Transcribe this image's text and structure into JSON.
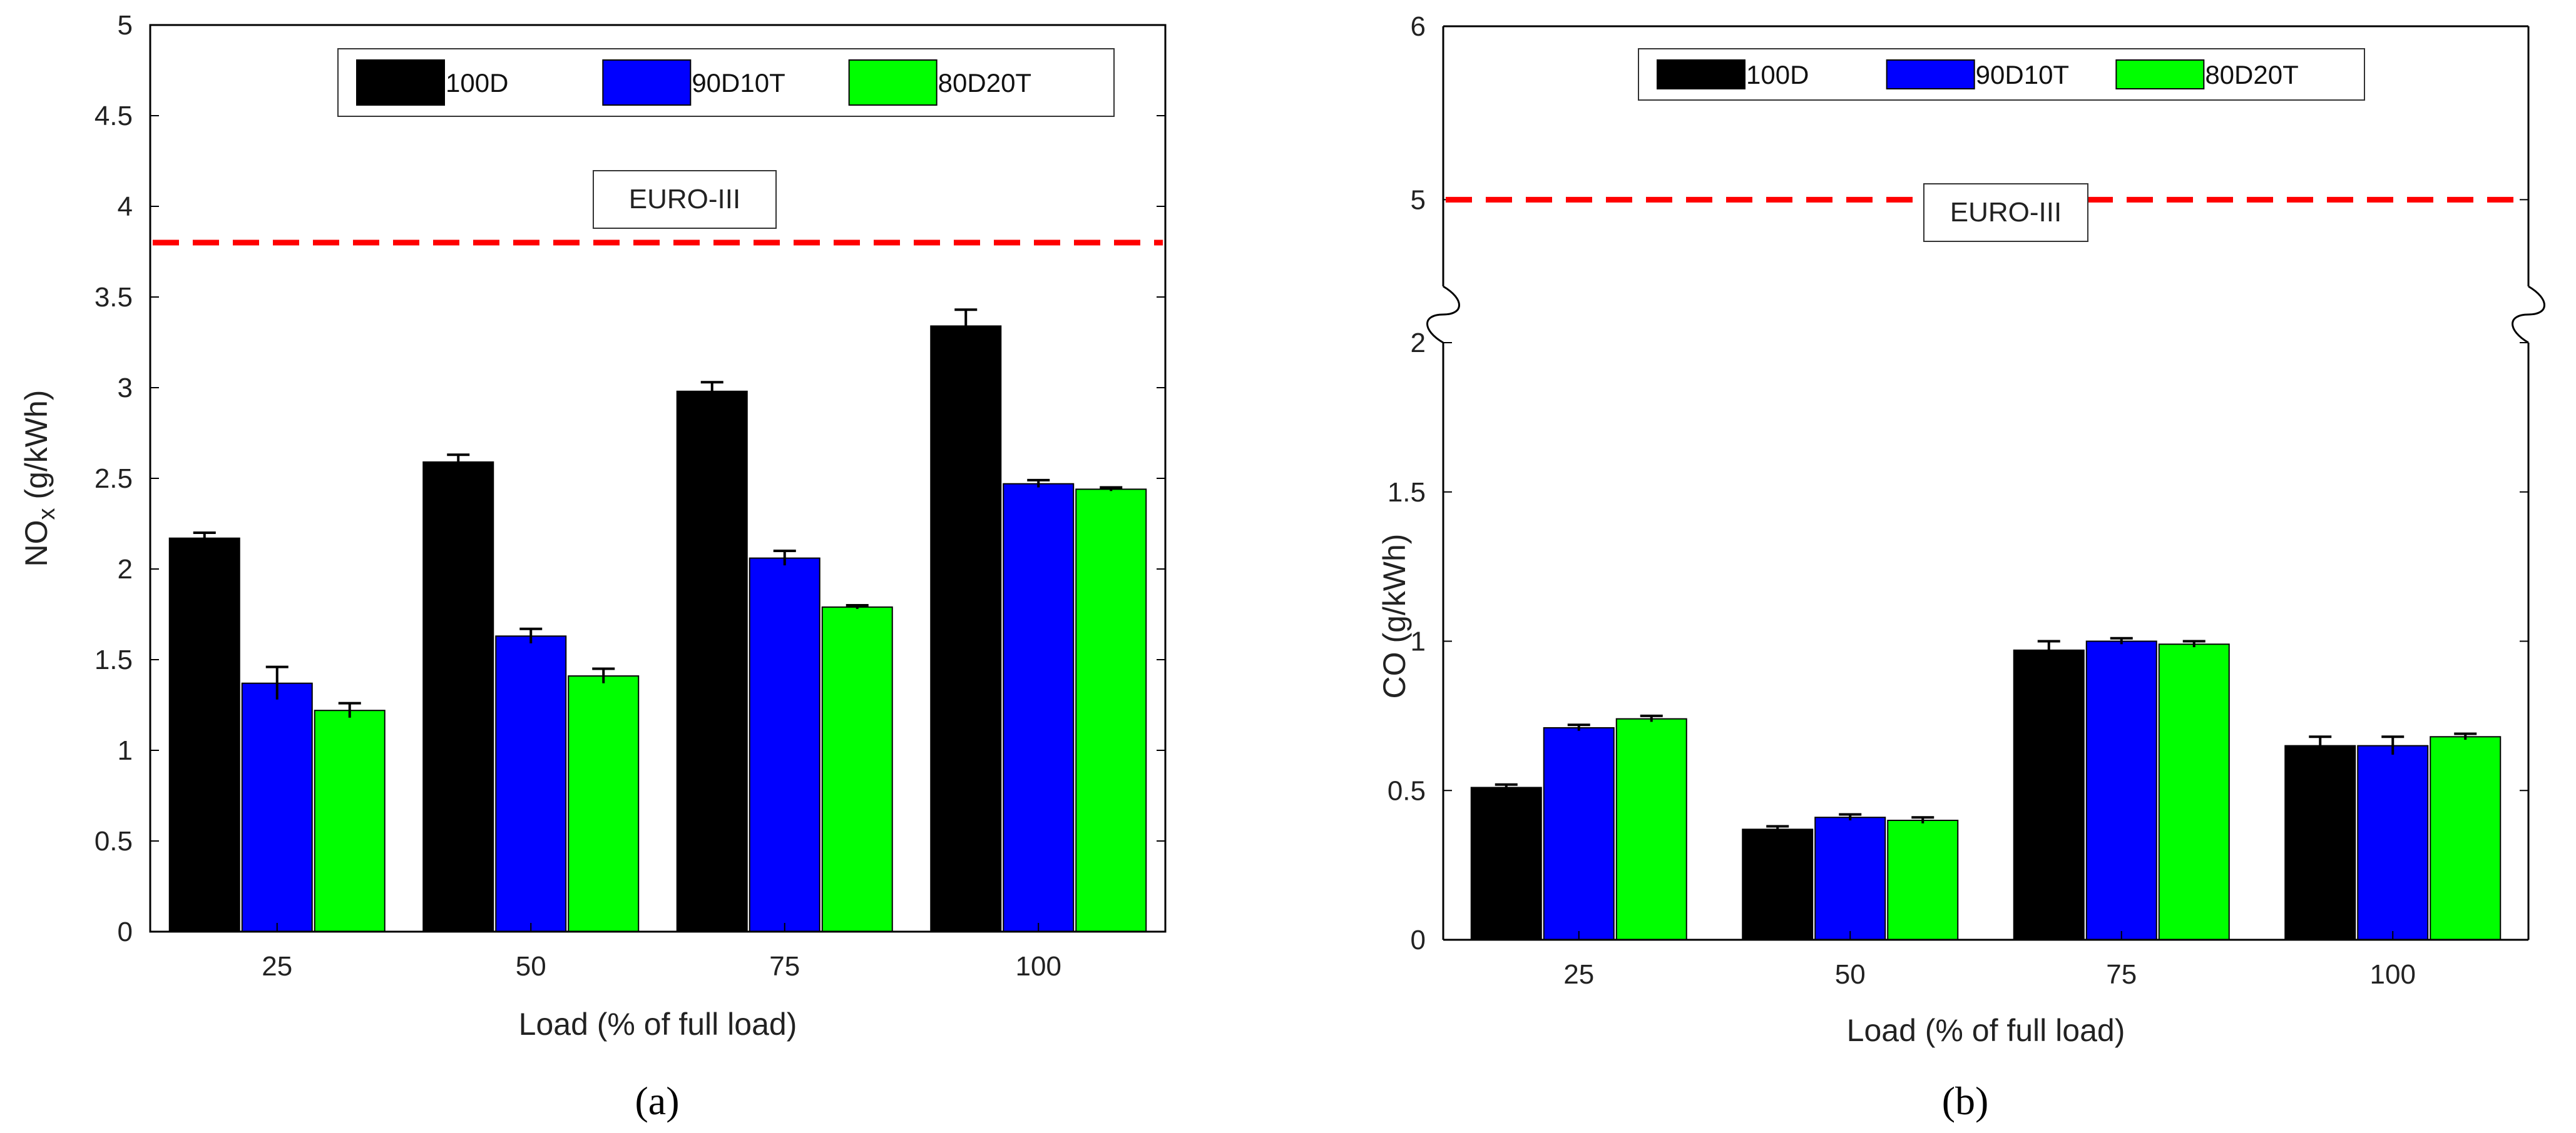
{
  "chart_data": [
    {
      "type": "bar",
      "panel_label": "(a)",
      "categories": [
        "25",
        "50",
        "75",
        "100"
      ],
      "series": [
        {
          "name": "100D",
          "color": "#000000",
          "values": [
            2.17,
            2.59,
            2.98,
            3.34
          ],
          "errors": [
            0.03,
            0.04,
            0.05,
            0.09
          ]
        },
        {
          "name": "90D10T",
          "color": "#0000ff",
          "values": [
            1.37,
            1.63,
            2.06,
            2.47
          ],
          "errors": [
            0.09,
            0.04,
            0.04,
            0.02
          ]
        },
        {
          "name": "80D20T",
          "color": "#00ff00",
          "values": [
            1.22,
            1.41,
            1.79,
            2.44
          ],
          "errors": [
            0.04,
            0.04,
            0.01,
            0.01
          ]
        }
      ],
      "xlabel": "Load (% of full load)",
      "ylabel_main": "NO",
      "ylabel_sub": "x",
      "ylabel_unit": " (g/kWh)",
      "ylim": [
        0,
        5
      ],
      "yticks": [
        "0",
        "0.5",
        "1",
        "1.5",
        "2",
        "2.5",
        "3",
        "3.5",
        "4",
        "4.5",
        "5"
      ],
      "reference_line": {
        "label": "EURO-III",
        "value": 3.8,
        "color": "#ff0000"
      },
      "legend_position": "top-center"
    },
    {
      "type": "bar",
      "panel_label": "(b)",
      "categories": [
        "25",
        "50",
        "75",
        "100"
      ],
      "series": [
        {
          "name": "100D",
          "color": "#000000",
          "values": [
            0.51,
            0.37,
            0.97,
            0.65
          ],
          "errors": [
            0.01,
            0.01,
            0.03,
            0.03
          ]
        },
        {
          "name": "90D10T",
          "color": "#0000ff",
          "values": [
            0.71,
            0.41,
            1.0,
            0.65
          ],
          "errors": [
            0.01,
            0.01,
            0.01,
            0.03
          ]
        },
        {
          "name": "80D20T",
          "color": "#00ff00",
          "values": [
            0.74,
            0.4,
            0.99,
            0.68
          ],
          "errors": [
            0.01,
            0.01,
            0.01,
            0.01
          ]
        }
      ],
      "xlabel": "Load (% of full load)",
      "ylabel": "CO (g/kWh)",
      "ylim_lower": [
        0,
        2
      ],
      "ylim_upper": [
        4.5,
        6
      ],
      "axis_break": true,
      "yticks_lower": [
        "0",
        "0.5",
        "1",
        "1.5",
        "2"
      ],
      "yticks_upper": [
        "5",
        "6"
      ],
      "reference_line": {
        "label": "EURO-III",
        "value": 5,
        "color": "#ff0000"
      },
      "legend_position": "top-center"
    }
  ]
}
